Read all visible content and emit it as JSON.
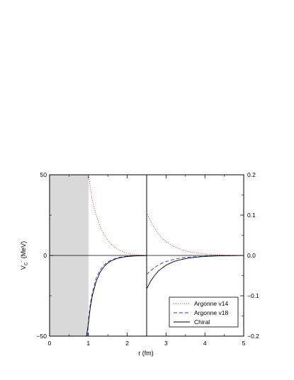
{
  "chart_data": {
    "type": "line",
    "xlabel": "r (fm)",
    "ylabel_left": "V",
    "ylabel_left_sub": "C",
    "ylabel_left_sup": "-",
    "ylabel_left_unit": "(MeV)",
    "xlim": [
      0,
      5
    ],
    "ylim_left": [
      -50,
      50
    ],
    "ylim_right": [
      -0.2,
      0.2
    ],
    "x_ticks": [
      "0",
      "1",
      "2",
      "3",
      "4",
      "5"
    ],
    "y_ticks_left": [
      "50",
      "0",
      "-50"
    ],
    "y_ticks_right": [
      "0.2",
      "0.1",
      "0.0",
      "-0.1",
      "-0.2"
    ],
    "shaded_region_x": [
      0,
      1
    ],
    "panel_split_x": 2.5,
    "legend_position": "bottom-right",
    "series": [
      {
        "name": "Argonne v14",
        "color": "#e0302a",
        "style": "dotted",
        "left_panel": {
          "x": [
            1.0,
            1.1,
            1.2,
            1.3,
            1.4,
            1.5,
            1.6,
            1.7,
            1.8,
            1.9,
            2.0,
            2.1,
            2.2,
            2.3,
            2.4,
            2.5
          ],
          "y": [
            50,
            34,
            25,
            18,
            13,
            9.5,
            6.8,
            4.8,
            3.3,
            2.3,
            1.5,
            1.0,
            0.6,
            0.35,
            0.2,
            0.1
          ]
        },
        "right_panel": {
          "x": [
            2.5,
            2.6,
            2.7,
            2.8,
            2.9,
            3.0,
            3.2,
            3.4,
            3.6,
            3.8,
            4.0,
            4.3,
            4.6,
            5.0
          ],
          "y": [
            0.107,
            0.085,
            0.068,
            0.054,
            0.043,
            0.034,
            0.022,
            0.014,
            0.009,
            0.006,
            0.004,
            0.002,
            0.001,
            0.0
          ]
        }
      },
      {
        "name": "Argonne v18",
        "color": "#2b3ec8",
        "style": "dashed",
        "left_panel": {
          "x": [
            0.98,
            1.0,
            1.05,
            1.1,
            1.2,
            1.3,
            1.4,
            1.5,
            1.6,
            1.7,
            1.8,
            1.9,
            2.0,
            2.2,
            2.5
          ],
          "y": [
            -50,
            -40,
            -30,
            -23,
            -14,
            -9,
            -6,
            -4,
            -2.7,
            -1.8,
            -1.2,
            -0.8,
            -0.5,
            -0.2,
            -0.05
          ]
        },
        "right_panel": {
          "x": [
            2.5,
            2.6,
            2.7,
            2.8,
            2.9,
            3.0,
            3.2,
            3.4,
            3.6,
            3.8,
            4.0,
            4.3,
            4.6,
            5.0
          ],
          "y": [
            -0.047,
            -0.038,
            -0.03,
            -0.024,
            -0.019,
            -0.015,
            -0.01,
            -0.006,
            -0.004,
            -0.003,
            -0.002,
            -0.001,
            -0.0005,
            0.0
          ]
        }
      },
      {
        "name": "Chiral",
        "color": "#000000",
        "style": "solid",
        "left_panel": {
          "x": [
            0.95,
            1.0,
            1.05,
            1.1,
            1.2,
            1.3,
            1.4,
            1.5,
            1.6,
            1.7,
            1.8,
            1.9,
            2.0,
            2.2,
            2.5
          ],
          "y": [
            -50,
            -42,
            -32,
            -25,
            -16,
            -10.5,
            -7,
            -4.7,
            -3.2,
            -2.2,
            -1.5,
            -1.0,
            -0.65,
            -0.3,
            -0.08
          ]
        },
        "right_panel": {
          "x": [
            2.5,
            2.6,
            2.7,
            2.8,
            2.9,
            3.0,
            3.2,
            3.4,
            3.6,
            3.8,
            4.0,
            4.3,
            4.6,
            5.0
          ],
          "y": [
            -0.083,
            -0.064,
            -0.05,
            -0.039,
            -0.031,
            -0.024,
            -0.015,
            -0.01,
            -0.006,
            -0.004,
            -0.0025,
            -0.0012,
            -0.0006,
            0.0
          ]
        }
      }
    ]
  }
}
